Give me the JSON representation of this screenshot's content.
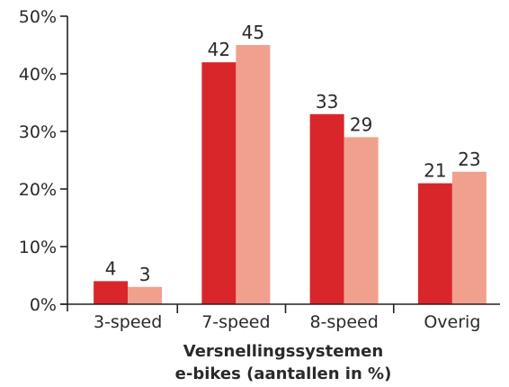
{
  "chart_data": {
    "type": "bar",
    "categories": [
      "3-speed",
      "7-speed",
      "8-speed",
      "Overig"
    ],
    "series": [
      {
        "values": [
          4,
          42,
          33,
          21
        ]
      },
      {
        "values": [
          3,
          45,
          29,
          23
        ]
      }
    ],
    "data_labels": [
      [
        "4",
        "42",
        "33",
        "21"
      ],
      [
        "3",
        "45",
        "29",
        "23"
      ]
    ],
    "y_ticks": [
      "0%",
      "10%",
      "20%",
      "30%",
      "40%",
      "50%"
    ],
    "ylim": [
      0,
      50
    ],
    "xlabel_lines": [
      "Versnellingssystemen",
      "e-bikes (aantallen in %)"
    ],
    "ylabel": "",
    "grid": false,
    "legend": "none",
    "colors": [
      "#d9262b",
      "#f2a08e"
    ]
  }
}
